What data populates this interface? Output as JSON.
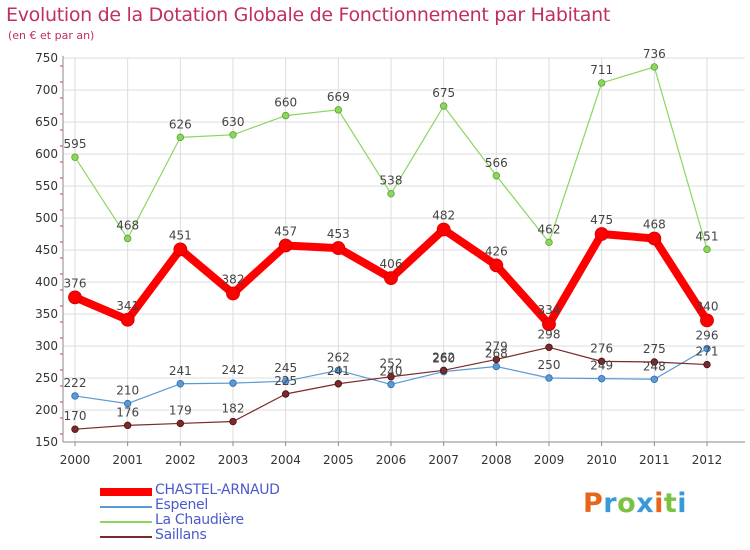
{
  "header": {
    "title": "Evolution de la Dotation Globale de Fonctionnement par Habitant",
    "subtitle": "(en € et par an)"
  },
  "brand": {
    "text": "Proxiti",
    "colors": [
      "#e8641b",
      "#3a9ad9",
      "#7cc242",
      "#3a9ad9",
      "#e8641b",
      "#7cc242",
      "#3a9ad9"
    ]
  },
  "chart_data": {
    "type": "line",
    "title": "Evolution de la Dotation Globale de Fonctionnement par Habitant",
    "subtitle": "(en € et par an)",
    "x": [
      "2000",
      "2001",
      "2002",
      "2003",
      "2004",
      "2005",
      "2006",
      "2007",
      "2008",
      "2009",
      "2010",
      "2011",
      "2012"
    ],
    "ylim": [
      150,
      750
    ],
    "yticks": [
      150,
      200,
      250,
      300,
      350,
      400,
      450,
      500,
      550,
      600,
      650,
      700,
      750
    ],
    "grid": true,
    "legend_position": "bottom-left",
    "series": [
      {
        "name": "CHASTEL-ARNAUD",
        "color": "#ff0000",
        "values": [
          376,
          341,
          451,
          382,
          457,
          453,
          406,
          482,
          426,
          334,
          475,
          468,
          340
        ]
      },
      {
        "name": "Espenel",
        "color": "#5b9bd5",
        "values": [
          222,
          210,
          241,
          242,
          245,
          262,
          240,
          260,
          268,
          250,
          249,
          248,
          296
        ]
      },
      {
        "name": "La Chaudière",
        "color": "#8bd65e",
        "values": [
          595,
          468,
          626,
          630,
          660,
          669,
          538,
          675,
          566,
          462,
          711,
          736,
          451
        ]
      },
      {
        "name": "Saillans",
        "color": "#7a2a2a",
        "values": [
          170,
          176,
          179,
          182,
          225,
          241,
          252,
          262,
          279,
          298,
          276,
          275,
          271
        ]
      }
    ],
    "point_labels": [
      [
        "376",
        "341",
        "451",
        "382",
        "457",
        "453",
        "406",
        "482",
        "426",
        "334",
        "475",
        "468",
        "340"
      ],
      [
        "222",
        "210",
        "241",
        "242",
        "245",
        "262",
        "240",
        "260",
        "268",
        "250",
        "249",
        "248",
        "296"
      ],
      [
        "595",
        "468",
        "626",
        "630",
        "660",
        "669",
        "538",
        "675",
        "566",
        "462",
        "711",
        "736",
        "451"
      ],
      [
        "170",
        "176",
        "179",
        "182",
        "225",
        "241",
        "252",
        "262",
        "279",
        "298",
        "276",
        "275",
        "271"
      ]
    ]
  }
}
